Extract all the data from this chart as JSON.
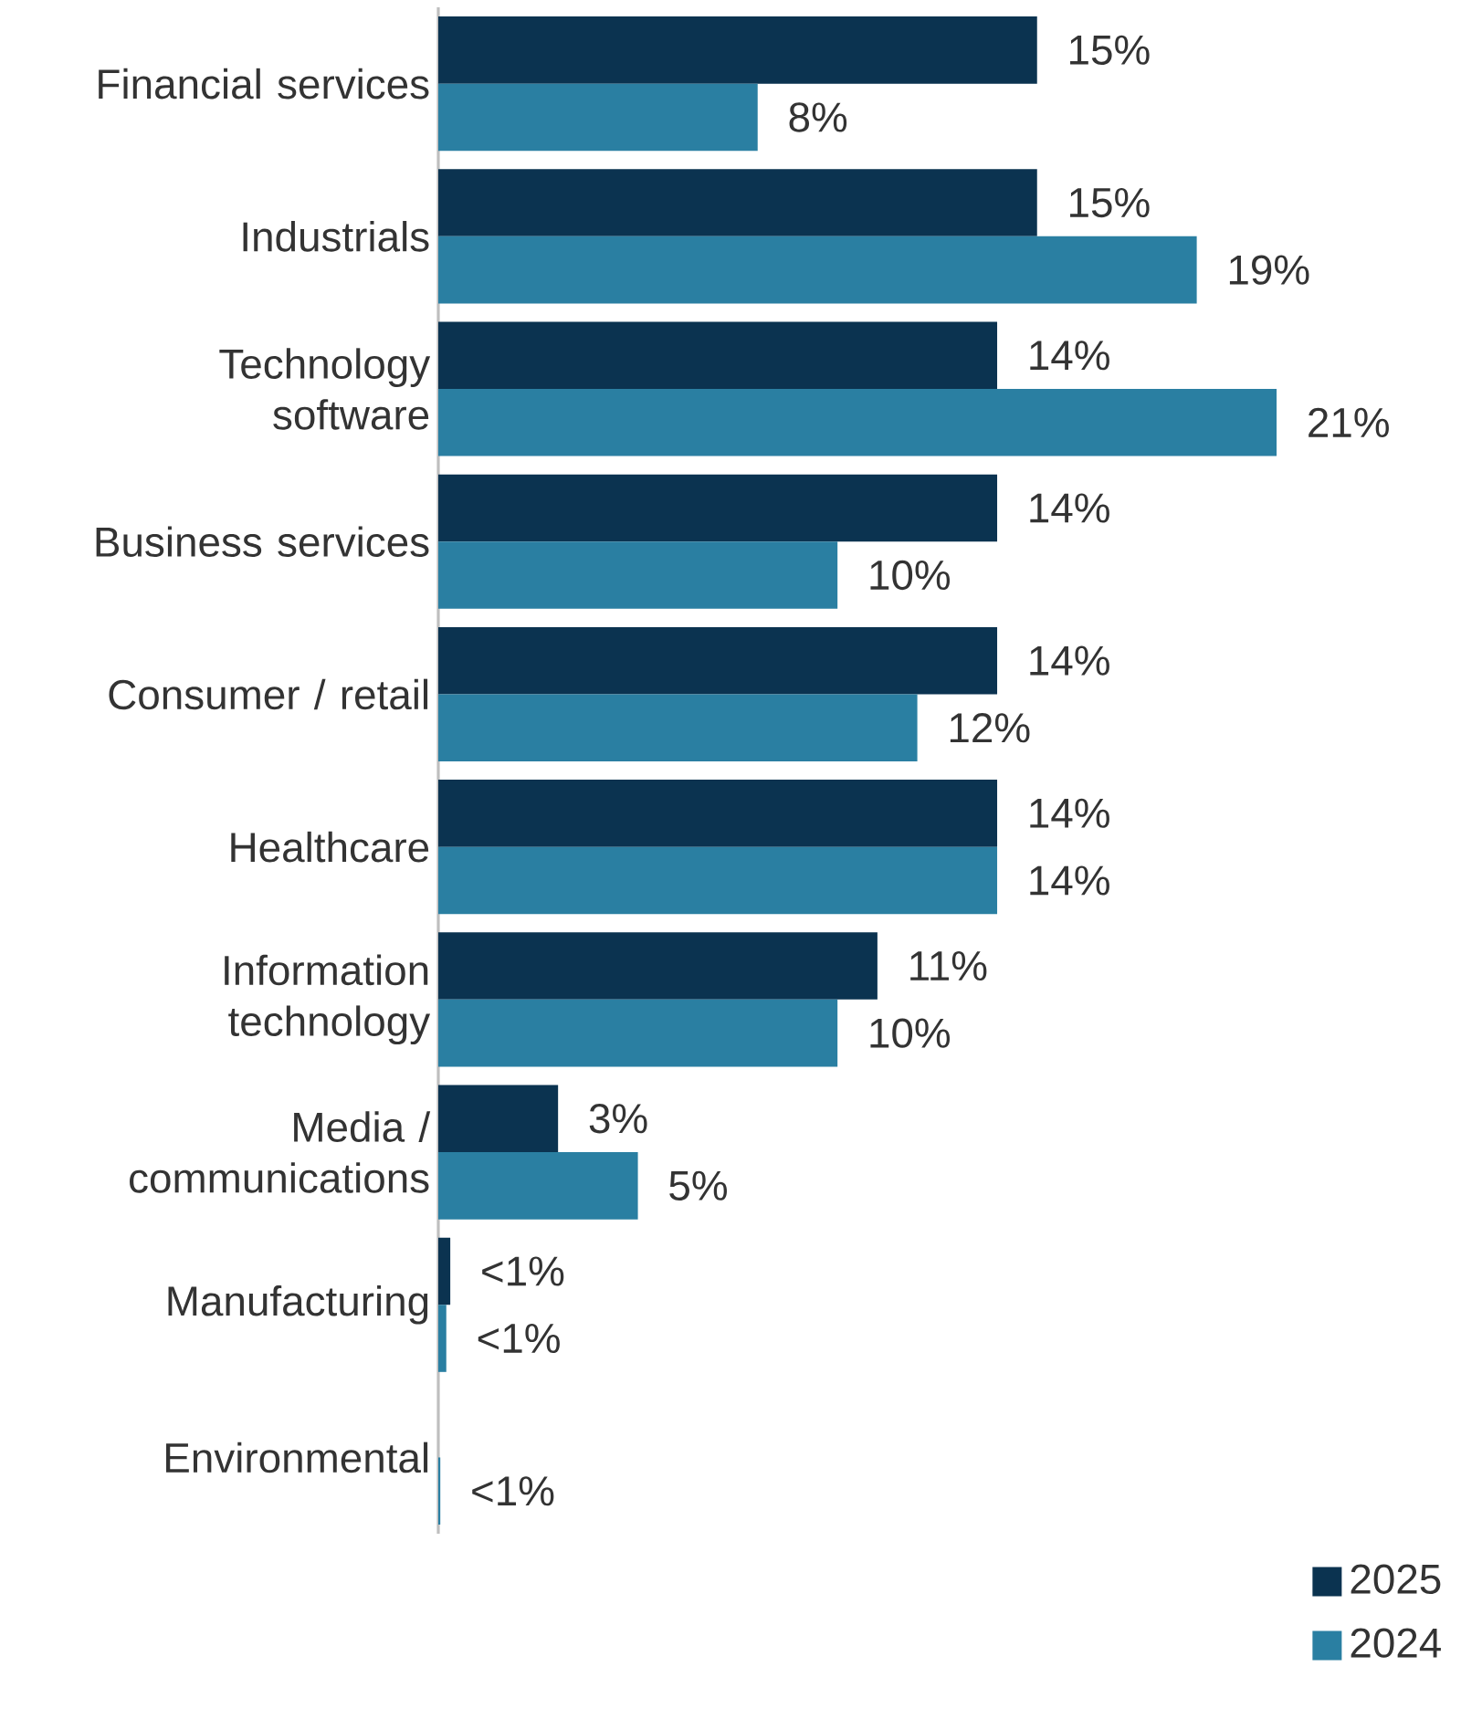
{
  "chart_data": {
    "type": "bar",
    "orientation": "horizontal",
    "categories": [
      "Financial services",
      "Industrials",
      "Technology software",
      "Business services",
      "Consumer / retail",
      "Healthcare",
      "Information technology",
      "Media / communications",
      "Manufacturing",
      "Environmental"
    ],
    "series": [
      {
        "name": "2025",
        "color": "#0b3350",
        "values": [
          15,
          15,
          14,
          14,
          14,
          14,
          11,
          3,
          0.3,
          null
        ],
        "value_labels": [
          "15%",
          "15%",
          "14%",
          "14%",
          "14%",
          "14%",
          "11%",
          "3%",
          "<1%",
          null
        ]
      },
      {
        "name": "2024",
        "color": "#2a7fa2",
        "values": [
          8,
          19,
          21,
          10,
          12,
          14,
          10,
          5,
          0.2,
          0.05
        ],
        "value_labels": [
          "8%",
          "19%",
          "21%",
          "10%",
          "12%",
          "14%",
          "10%",
          "5%",
          "<1%",
          "<1%"
        ]
      }
    ],
    "legend": "bottom right"
  }
}
